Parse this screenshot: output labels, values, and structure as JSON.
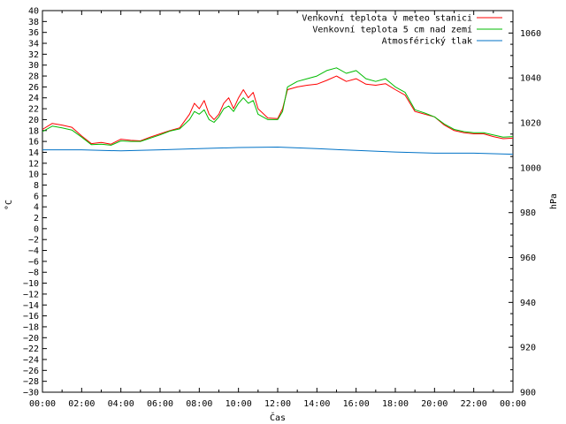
{
  "chart_data": {
    "type": "line",
    "xlabel": "Čas",
    "ylabel_left": "°C",
    "ylabel_right": "hPa",
    "x_ticks": [
      "00:00",
      "02:00",
      "04:00",
      "06:00",
      "08:00",
      "10:00",
      "12:00",
      "14:00",
      "16:00",
      "18:00",
      "20:00",
      "22:00",
      "00:00"
    ],
    "ylim_left": [
      -30,
      40
    ],
    "ylim_right": [
      900,
      1070
    ],
    "y_ticks_left": [
      40,
      38,
      36,
      34,
      32,
      30,
      28,
      26,
      24,
      22,
      20,
      18,
      16,
      14,
      12,
      10,
      8,
      6,
      4,
      2,
      0,
      -2,
      -4,
      -6,
      -8,
      -10,
      -12,
      -14,
      -16,
      -18,
      -20,
      -22,
      -24,
      -26,
      -28,
      -30
    ],
    "y_ticks_right": [
      1060,
      1040,
      1020,
      1000,
      980,
      960,
      940,
      920,
      900
    ],
    "grid": false,
    "legend_position": "top-right",
    "series": [
      {
        "name": "Venkovní teplota v meteo stanici",
        "color": "#ff0000",
        "axis": "left",
        "x": [
          0,
          0.5,
          1,
          1.5,
          2,
          2.5,
          3,
          3.5,
          4,
          4.5,
          5,
          5.5,
          6,
          6.5,
          7,
          7.5,
          7.75,
          8,
          8.25,
          8.5,
          8.75,
          9,
          9.25,
          9.5,
          9.75,
          10,
          10.25,
          10.5,
          10.75,
          11,
          11.5,
          12,
          12.25,
          12.5,
          13,
          13.5,
          14,
          14.5,
          15,
          15.5,
          16,
          16.5,
          17,
          17.5,
          18,
          18.5,
          19,
          19.5,
          20,
          20.5,
          21,
          21.5,
          22,
          22.5,
          23,
          23.5,
          24
        ],
        "y": [
          18.2,
          19.3,
          19,
          18.6,
          17,
          15.6,
          15.8,
          15.5,
          16.4,
          16.2,
          16.1,
          16.8,
          17.4,
          18,
          18.5,
          21,
          23,
          22,
          23.5,
          21,
          20,
          21,
          23,
          24,
          22,
          24,
          25.5,
          24,
          25,
          22,
          20.3,
          20.2,
          22,
          25.5,
          26,
          26.3,
          26.5,
          27.2,
          28,
          27,
          27.5,
          26.5,
          26.3,
          26.6,
          25.5,
          24.5,
          21.5,
          21,
          20.5,
          19,
          18,
          17.6,
          17.4,
          17.4,
          16.9,
          16.5,
          16.6
        ]
      },
      {
        "name": "Venkovní teplota 5 cm nad zemí",
        "color": "#00bb00",
        "axis": "left",
        "x": [
          0,
          0.5,
          1,
          1.5,
          2,
          2.5,
          3,
          3.5,
          4,
          4.5,
          5,
          5.5,
          6,
          6.5,
          7,
          7.5,
          7.75,
          8,
          8.25,
          8.5,
          8.75,
          9,
          9.25,
          9.5,
          9.75,
          10,
          10.25,
          10.5,
          10.75,
          11,
          11.5,
          12,
          12.25,
          12.5,
          13,
          13.5,
          14,
          14.5,
          15,
          15.5,
          16,
          16.5,
          17,
          17.5,
          18,
          18.5,
          19,
          19.5,
          20,
          20.5,
          21,
          21.5,
          22,
          22.5,
          23,
          23.5,
          24
        ],
        "y": [
          17.8,
          18.8,
          18.5,
          18.1,
          16.8,
          15.4,
          15.5,
          15.3,
          16.1,
          16,
          16,
          16.6,
          17.2,
          17.9,
          18.3,
          20,
          21.5,
          21,
          21.8,
          20,
          19.5,
          20.5,
          22,
          22.5,
          21.5,
          23,
          24,
          23,
          23.5,
          21,
          20,
          20,
          21.5,
          26,
          27,
          27.5,
          28,
          29,
          29.5,
          28.5,
          29,
          27.5,
          27,
          27.5,
          26,
          25,
          21.8,
          21.2,
          20.5,
          19.2,
          18.2,
          17.8,
          17.6,
          17.6,
          17.2,
          16.8,
          16.9
        ]
      },
      {
        "name": "Atmosférický tlak",
        "color": "#0072c6",
        "axis": "right",
        "x": [
          0,
          2,
          4,
          6,
          8,
          10,
          12,
          14,
          16,
          18,
          20,
          22,
          24
        ],
        "y": [
          1008,
          1008,
          1007.5,
          1008,
          1008.5,
          1009,
          1009.2,
          1008.5,
          1007.7,
          1007,
          1006.5,
          1006.5,
          1006
        ]
      }
    ]
  }
}
